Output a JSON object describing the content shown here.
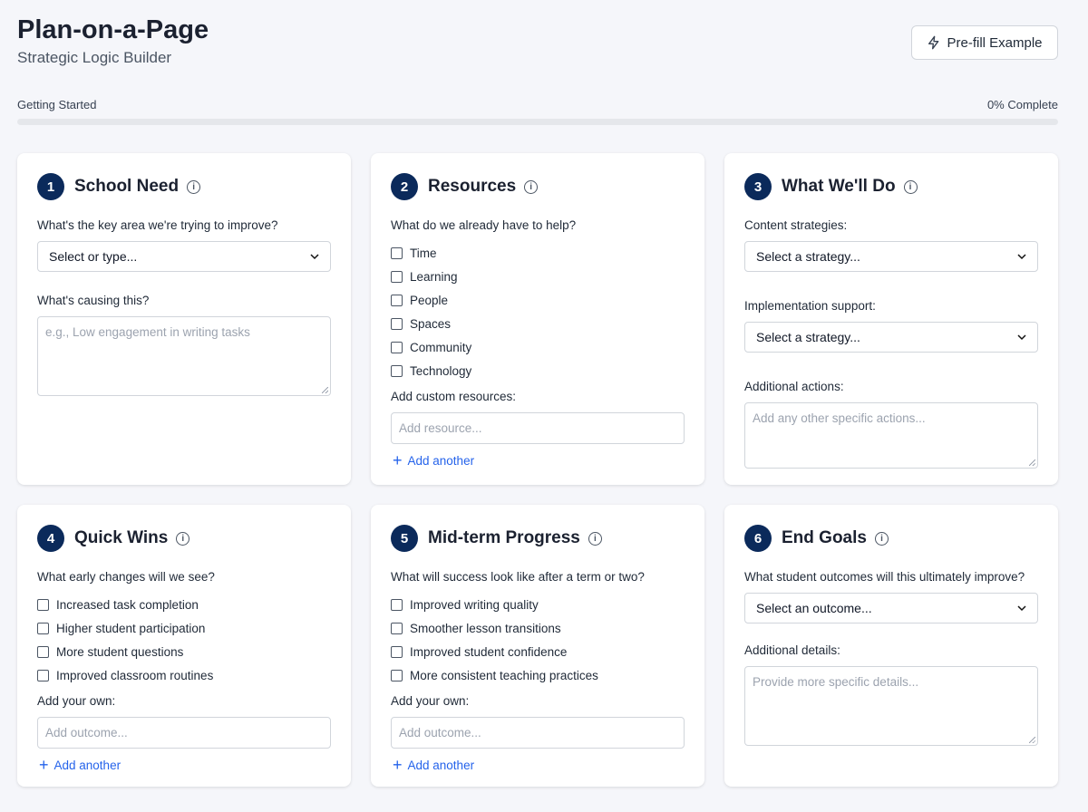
{
  "header": {
    "title": "Plan-on-a-Page",
    "subtitle": "Strategic Logic Builder",
    "prefill_label": "Pre-fill Example"
  },
  "progress": {
    "label": "Getting Started",
    "status": "0% Complete",
    "percent": 0
  },
  "colors": {
    "accent": "#0b2a5b",
    "link": "#2563eb"
  },
  "cards": [
    {
      "num": "1",
      "title": "School Need",
      "q1": "What's the key area we're trying to improve?",
      "select": "Select or type...",
      "q2": "What's causing this?",
      "textarea_placeholder": "e.g., Low engagement in writing tasks"
    },
    {
      "num": "2",
      "title": "Resources",
      "q1": "What do we already have to help?",
      "options": [
        "Time",
        "Learning",
        "People",
        "Spaces",
        "Community",
        "Technology"
      ],
      "custom_label": "Add custom resources:",
      "input_placeholder": "Add resource...",
      "add": "Add another"
    },
    {
      "num": "3",
      "title": "What We'll Do",
      "q1": "Content strategies:",
      "select1": "Select a strategy...",
      "q2": "Implementation support:",
      "select2": "Select a strategy...",
      "q3": "Additional actions:",
      "textarea_placeholder": "Add any other specific actions..."
    },
    {
      "num": "4",
      "title": "Quick Wins",
      "q1": "What early changes will we see?",
      "options": [
        "Increased task completion",
        "Higher student participation",
        "More student questions",
        "Improved classroom routines"
      ],
      "custom_label": "Add your own:",
      "input_placeholder": "Add outcome...",
      "add": "Add another"
    },
    {
      "num": "5",
      "title": "Mid-term Progress",
      "q1": "What will success look like after a term or two?",
      "options": [
        "Improved writing quality",
        "Smoother lesson transitions",
        "Improved student confidence",
        "More consistent teaching practices"
      ],
      "custom_label": "Add your own:",
      "input_placeholder": "Add outcome...",
      "add": "Add another"
    },
    {
      "num": "6",
      "title": "End Goals",
      "q1": "What student outcomes will this ultimately improve?",
      "select": "Select an outcome...",
      "q2": "Additional details:",
      "textarea_placeholder": "Provide more specific details..."
    }
  ]
}
